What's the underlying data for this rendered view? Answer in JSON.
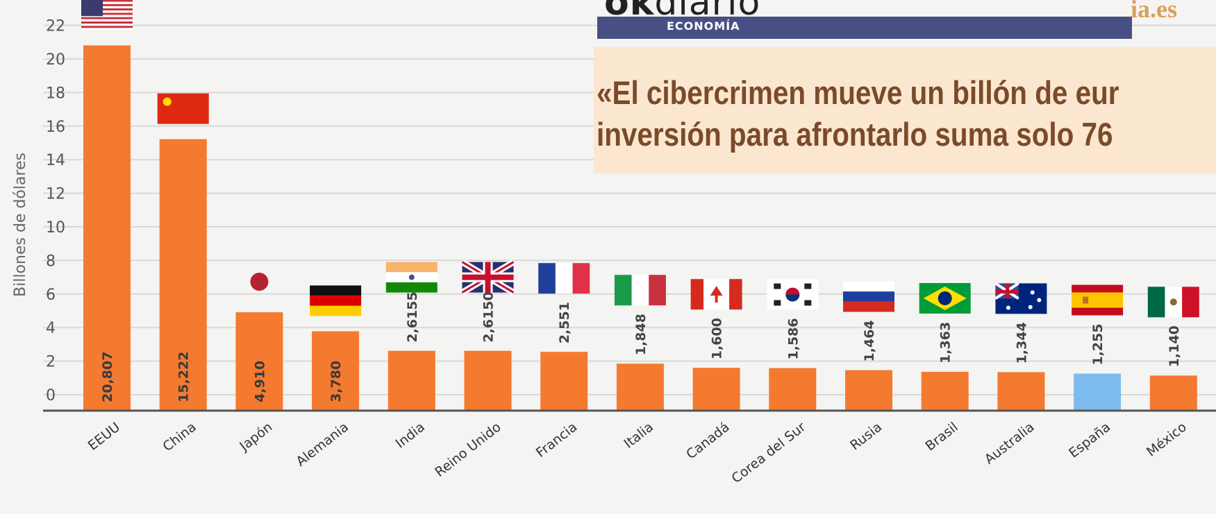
{
  "chart_data": {
    "type": "bar",
    "ylabel": "Billones de dólares",
    "ylim": [
      0,
      22
    ],
    "yticks": [
      "22",
      "20",
      "18",
      "16",
      "14",
      "12",
      "10",
      "8",
      "6",
      "4",
      "2",
      "0"
    ],
    "categories": [
      "EEUU",
      "China",
      "Japón",
      "Alemania",
      "India",
      "Reino Unido",
      "Francia",
      "Italia",
      "Canadá",
      "Corea del Sur",
      "Rusia",
      "Brasil",
      "Australia",
      "España",
      "México"
    ],
    "values": [
      20.807,
      15.222,
      4.91,
      3.78,
      2.6155,
      2.615,
      2.551,
      1.848,
      1.6,
      1.586,
      1.464,
      1.363,
      1.344,
      1.255,
      1.14
    ],
    "value_labels": [
      "20,807",
      "15,222",
      "4,910",
      "3,780",
      "2,6155",
      "2,6150",
      "2,551",
      "1,848",
      "1,600",
      "1,586",
      "1,464",
      "1,363",
      "1,344",
      "1,255",
      "1,140"
    ],
    "bar_color": "#f47a30",
    "highlight_color": "#7dbbed",
    "highlight_category": "España",
    "flags": [
      "usa-flag",
      "china-flag",
      "japan-flag",
      "germany-flag",
      "india-flag",
      "uk-flag",
      "france-flag",
      "italy-flag",
      "canada-flag",
      "south-korea-flag",
      "russia-flag",
      "brazil-flag",
      "australia-flag",
      "spain-flag",
      "mexico-flag"
    ]
  },
  "masthead": {
    "logo_bold": "ok",
    "logo_light": "diario",
    "section": "ECONOMÍA",
    "site_suffix": "ia.es"
  },
  "headline": {
    "line1": "«El cibercrimen mueve un billón de eur",
    "line2": "inversión para afrontarlo suma solo 76"
  }
}
